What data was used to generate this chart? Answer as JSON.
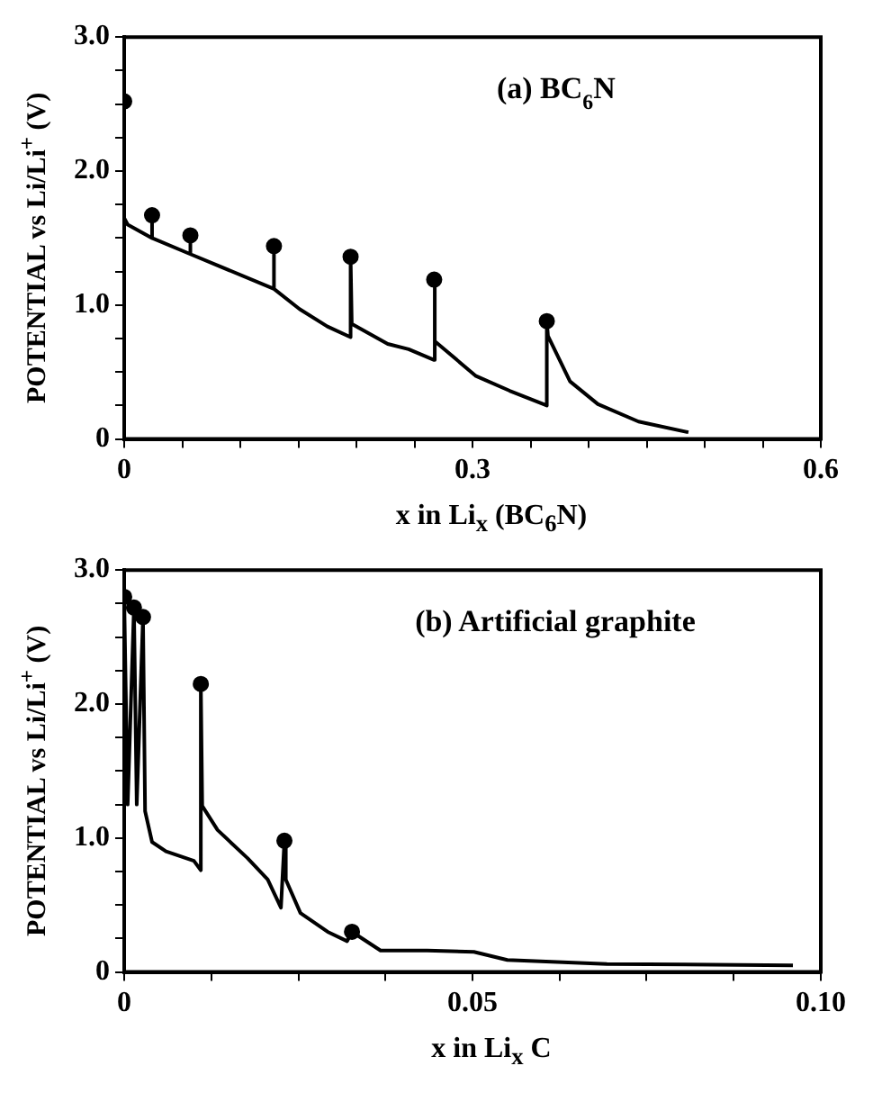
{
  "chart_data": [
    {
      "type": "line",
      "xlabel": "x in Li$_{x}$ (BC$_{6}$N)",
      "ylabel": "POTENTIAL vs Li/Li$^{+}$ (V)",
      "annotations": [
        "(a) BC$_{6}$N"
      ],
      "xlim": [
        0,
        0.6
      ],
      "ylim": [
        0,
        3.0
      ],
      "xticks": [
        0,
        {
          "value": 0.05,
          "label": null
        },
        {
          "value": 0.1,
          "label": null
        },
        {
          "value": 0.15,
          "label": null
        },
        {
          "value": 0.2,
          "label": null
        },
        {
          "value": 0.25,
          "label": null
        },
        0.3,
        {
          "value": 0.35,
          "label": null
        },
        {
          "value": 0.4,
          "label": null
        },
        {
          "value": 0.45,
          "label": null
        },
        {
          "value": 0.5,
          "label": null
        },
        {
          "value": 0.55,
          "label": null
        },
        0.6
      ],
      "yticks": [
        0,
        {
          "value": 0.25,
          "label": null
        },
        {
          "value": 0.5,
          "label": null
        },
        {
          "value": 0.75,
          "label": null
        },
        {
          "value": 1.0,
          "label": "1.0"
        },
        {
          "value": 1.25,
          "label": null
        },
        {
          "value": 1.5,
          "label": null
        },
        {
          "value": 1.75,
          "label": null
        },
        {
          "value": 2.0,
          "label": "2.0"
        },
        {
          "value": 2.25,
          "label": null
        },
        {
          "value": 2.5,
          "label": null
        },
        {
          "value": 2.75,
          "label": null
        },
        {
          "value": 3.0,
          "label": "3.0"
        }
      ],
      "series": [
        {
          "type": "line",
          "marker": "none",
          "color": "#000000",
          "x": [
            0,
            0,
            0.003,
            0.024,
            0.024,
            0.024,
            0.057,
            0.057,
            0.057,
            0.129,
            0.129,
            0.129,
            0.151,
            0.175,
            0.195,
            0.195,
            0.196,
            0.227,
            0.245,
            0.267,
            0.267,
            0.268,
            0.303,
            0.332,
            0.364,
            0.364,
            0.365,
            0.384,
            0.408,
            0.443,
            0.486
          ],
          "values": [
            2.52,
            1.65,
            1.6,
            1.5,
            1.67,
            1.5,
            1.38,
            1.52,
            1.38,
            1.12,
            1.44,
            1.12,
            0.97,
            0.84,
            0.76,
            1.36,
            0.86,
            0.71,
            0.67,
            0.59,
            1.19,
            0.73,
            0.47,
            0.36,
            0.25,
            0.88,
            0.77,
            0.43,
            0.26,
            0.13,
            0.05
          ]
        },
        {
          "type": "scatter",
          "marker": "circle",
          "color": "#000000",
          "x": [
            0,
            0.024,
            0.057,
            0.129,
            0.195,
            0.267,
            0.364
          ],
          "values": [
            2.52,
            1.67,
            1.52,
            1.44,
            1.36,
            1.19,
            0.88
          ]
        }
      ]
    },
    {
      "type": "line",
      "xlabel": "x in Li$_{x}$ C",
      "ylabel": "POTENTIAL vs Li/Li$^{+}$ (V)",
      "annotations": [
        "(b) Artificial graphite"
      ],
      "xlim": [
        0,
        0.1
      ],
      "ylim": [
        0,
        3.0
      ],
      "xticks": [
        0,
        {
          "value": 0.0125,
          "label": null
        },
        {
          "value": 0.025,
          "label": null
        },
        {
          "value": 0.0375,
          "label": null
        },
        0.05,
        {
          "value": 0.0625,
          "label": null
        },
        {
          "value": 0.075,
          "label": null
        },
        {
          "value": 0.0875,
          "label": null
        },
        {
          "value": 0.1,
          "label": "0.10"
        }
      ],
      "yticks": [
        0,
        {
          "value": 0.25,
          "label": null
        },
        {
          "value": 0.5,
          "label": null
        },
        {
          "value": 0.75,
          "label": null
        },
        {
          "value": 1.0,
          "label": "1.0"
        },
        {
          "value": 1.25,
          "label": null
        },
        {
          "value": 1.5,
          "label": null
        },
        {
          "value": 1.75,
          "label": null
        },
        {
          "value": 2.0,
          "label": "2.0"
        },
        {
          "value": 2.25,
          "label": null
        },
        {
          "value": 2.5,
          "label": null
        },
        {
          "value": 2.75,
          "label": null
        },
        {
          "value": 3.0,
          "label": "3.0"
        }
      ],
      "series": [
        {
          "type": "line",
          "marker": "none",
          "color": "#000000",
          "x": [
            0,
            0.0005,
            0.0014,
            0.0018,
            0.0027,
            0.003,
            0.004,
            0.006,
            0.01,
            0.011,
            0.011,
            0.0112,
            0.0134,
            0.0177,
            0.0206,
            0.0225,
            0.023,
            0.0232,
            0.0253,
            0.0292,
            0.032,
            0.0327,
            0.0368,
            0.0435,
            0.0502,
            0.055,
            0.0693,
            0.096
          ],
          "values": [
            2.8,
            1.25,
            2.72,
            1.25,
            2.65,
            1.2,
            0.97,
            0.9,
            0.83,
            0.76,
            2.15,
            1.24,
            1.06,
            0.85,
            0.69,
            0.48,
            0.98,
            0.69,
            0.44,
            0.3,
            0.23,
            0.3,
            0.16,
            0.16,
            0.15,
            0.09,
            0.06,
            0.05
          ]
        },
        {
          "type": "scatter",
          "marker": "circle",
          "color": "#000000",
          "x": [
            0,
            0.0014,
            0.0027,
            0.011,
            0.023,
            0.0327
          ],
          "values": [
            2.8,
            2.72,
            2.65,
            2.15,
            0.98,
            0.3
          ]
        }
      ]
    }
  ]
}
